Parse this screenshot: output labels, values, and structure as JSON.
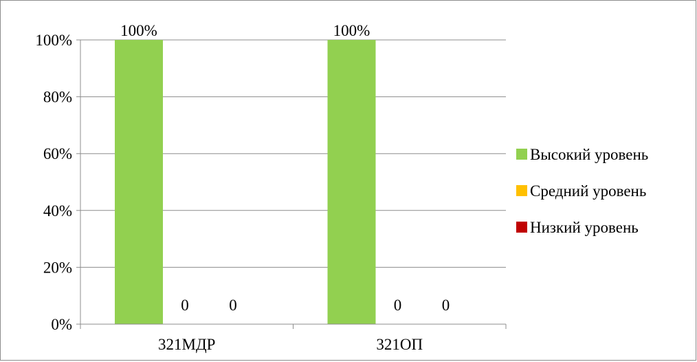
{
  "chart_data": {
    "type": "bar",
    "categories": [
      "321МДР",
      "321ОП"
    ],
    "series": [
      {
        "name": "Высокий уровень",
        "values": [
          100,
          100
        ],
        "labels": [
          "100%",
          "100%"
        ],
        "color": "#92d050"
      },
      {
        "name": "Средний уровень",
        "values": [
          0,
          0
        ],
        "labels": [
          "0",
          "0"
        ],
        "color": "#ffc000"
      },
      {
        "name": "Низкий уровень",
        "values": [
          0,
          0
        ],
        "labels": [
          "0",
          "0"
        ],
        "color": "#c00000"
      }
    ],
    "y_ticks": [
      "0%",
      "20%",
      "40%",
      "60%",
      "80%",
      "100%"
    ],
    "ylim": [
      0,
      100
    ],
    "grid": true,
    "legend": "right"
  }
}
